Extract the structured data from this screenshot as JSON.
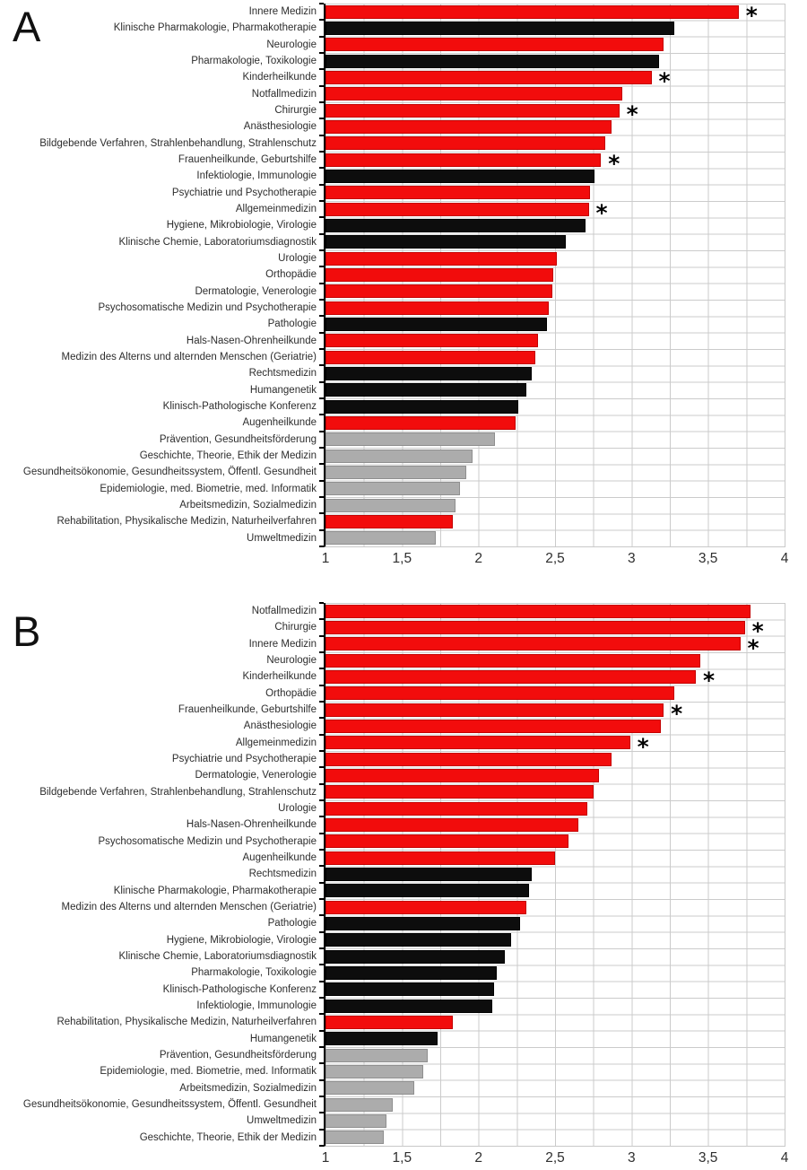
{
  "colors": {
    "red": "#f20c0c",
    "black": "#0d0d0d",
    "gray": "#acacac",
    "grid": "#cbcbcb",
    "axis": "#000000"
  },
  "significance_marker": "*",
  "chart_data": [
    {
      "type": "bar",
      "orientation": "horizontal",
      "panel_label": "A",
      "xlim": [
        1,
        4
      ],
      "grid_step": 0.25,
      "x_ticks": [
        "1",
        "1,5",
        "2",
        "2,5",
        "3",
        "3,5",
        "4"
      ],
      "x_tick_values": [
        1,
        1.5,
        2,
        2.5,
        3,
        3.5,
        4
      ],
      "legend": "none",
      "bars": [
        {
          "label": "Innere Medizin",
          "value": 3.7,
          "color": "red",
          "significant": true
        },
        {
          "label": "Klinische Pharmakologie, Pharmakotherapie",
          "value": 3.28,
          "color": "black",
          "significant": false
        },
        {
          "label": "Neurologie",
          "value": 3.21,
          "color": "red",
          "significant": false
        },
        {
          "label": "Pharmakologie, Toxikologie",
          "value": 3.18,
          "color": "black",
          "significant": false
        },
        {
          "label": "Kinderheilkunde",
          "value": 3.13,
          "color": "red",
          "significant": true
        },
        {
          "label": "Notfallmedizin",
          "value": 2.94,
          "color": "red",
          "significant": false
        },
        {
          "label": "Chirurgie",
          "value": 2.92,
          "color": "red",
          "significant": true
        },
        {
          "label": "Anästhesiologie",
          "value": 2.87,
          "color": "red",
          "significant": false
        },
        {
          "label": "Bildgebende Verfahren, Strahlenbehandlung, Strahlenschutz",
          "value": 2.83,
          "color": "red",
          "significant": false
        },
        {
          "label": "Frauenheilkunde, Geburtshilfe",
          "value": 2.8,
          "color": "red",
          "significant": true
        },
        {
          "label": "Infektiologie, Immunologie",
          "value": 2.76,
          "color": "black",
          "significant": false
        },
        {
          "label": "Psychiatrie und Psychotherapie",
          "value": 2.73,
          "color": "red",
          "significant": false
        },
        {
          "label": "Allgemeinmedizin",
          "value": 2.72,
          "color": "red",
          "significant": true
        },
        {
          "label": "Hygiene, Mikrobiologie, Virologie",
          "value": 2.7,
          "color": "black",
          "significant": false
        },
        {
          "label": "Klinische Chemie, Laboratoriumsdiagnostik",
          "value": 2.57,
          "color": "black",
          "significant": false
        },
        {
          "label": "Urologie",
          "value": 2.51,
          "color": "red",
          "significant": false
        },
        {
          "label": "Orthopädie",
          "value": 2.49,
          "color": "red",
          "significant": false
        },
        {
          "label": "Dermatologie, Venerologie",
          "value": 2.48,
          "color": "red",
          "significant": false
        },
        {
          "label": "Psychosomatische Medizin und Psychotherapie",
          "value": 2.46,
          "color": "red",
          "significant": false
        },
        {
          "label": "Pathologie",
          "value": 2.45,
          "color": "black",
          "significant": false
        },
        {
          "label": "Hals-Nasen-Ohrenheilkunde",
          "value": 2.39,
          "color": "red",
          "significant": false
        },
        {
          "label": "Medizin des Alterns und alternden Menschen (Geriatrie)",
          "value": 2.37,
          "color": "red",
          "significant": false
        },
        {
          "label": "Rechtsmedizin",
          "value": 2.35,
          "color": "black",
          "significant": false
        },
        {
          "label": "Humangenetik",
          "value": 2.31,
          "color": "black",
          "significant": false
        },
        {
          "label": "Klinisch-Pathologische Konferenz",
          "value": 2.26,
          "color": "black",
          "significant": false
        },
        {
          "label": "Augenheilkunde",
          "value": 2.24,
          "color": "red",
          "significant": false
        },
        {
          "label": "Prävention, Gesundheitsförderung",
          "value": 2.11,
          "color": "gray",
          "significant": false
        },
        {
          "label": "Geschichte, Theorie, Ethik der Medizin",
          "value": 1.96,
          "color": "gray",
          "significant": false
        },
        {
          "label": "Gesundheitsökonomie, Gesundheitssystem, Öffentl. Gesundheit",
          "value": 1.92,
          "color": "gray",
          "significant": false
        },
        {
          "label": "Epidemiologie, med. Biometrie, med. Informatik",
          "value": 1.88,
          "color": "gray",
          "significant": false
        },
        {
          "label": "Arbeitsmedizin, Sozialmedizin",
          "value": 1.85,
          "color": "gray",
          "significant": false
        },
        {
          "label": "Rehabilitation, Physikalische Medizin, Naturheilverfahren",
          "value": 1.83,
          "color": "red",
          "significant": false
        },
        {
          "label": "Umweltmedizin",
          "value": 1.72,
          "color": "gray",
          "significant": false
        }
      ]
    },
    {
      "type": "bar",
      "orientation": "horizontal",
      "panel_label": "B",
      "xlim": [
        1,
        4
      ],
      "grid_step": 0.25,
      "x_ticks": [
        "1",
        "1,5",
        "2",
        "2,5",
        "3",
        "3,5",
        "4"
      ],
      "x_tick_values": [
        1,
        1.5,
        2,
        2.5,
        3,
        3.5,
        4
      ],
      "legend": "none",
      "bars": [
        {
          "label": "Notfallmedizin",
          "value": 3.78,
          "color": "red",
          "significant": false
        },
        {
          "label": "Chirurgie",
          "value": 3.74,
          "color": "red",
          "significant": true
        },
        {
          "label": "Innere Medizin",
          "value": 3.71,
          "color": "red",
          "significant": true
        },
        {
          "label": "Neurologie",
          "value": 3.45,
          "color": "red",
          "significant": false
        },
        {
          "label": "Kinderheilkunde",
          "value": 3.42,
          "color": "red",
          "significant": true
        },
        {
          "label": "Orthopädie",
          "value": 3.28,
          "color": "red",
          "significant": false
        },
        {
          "label": "Frauenheilkunde, Geburtshilfe",
          "value": 3.21,
          "color": "red",
          "significant": true
        },
        {
          "label": "Anästhesiologie",
          "value": 3.19,
          "color": "red",
          "significant": false
        },
        {
          "label": "Allgemeinmedizin",
          "value": 2.99,
          "color": "red",
          "significant": true
        },
        {
          "label": "Psychiatrie und Psychotherapie",
          "value": 2.87,
          "color": "red",
          "significant": false
        },
        {
          "label": "Dermatologie, Venerologie",
          "value": 2.79,
          "color": "red",
          "significant": false
        },
        {
          "label": "Bildgebende Verfahren, Strahlenbehandlung, Strahlenschutz",
          "value": 2.75,
          "color": "red",
          "significant": false
        },
        {
          "label": "Urologie",
          "value": 2.71,
          "color": "red",
          "significant": false
        },
        {
          "label": "Hals-Nasen-Ohrenheilkunde",
          "value": 2.65,
          "color": "red",
          "significant": false
        },
        {
          "label": "Psychosomatische Medizin und Psychotherapie",
          "value": 2.59,
          "color": "red",
          "significant": false
        },
        {
          "label": "Augenheilkunde",
          "value": 2.5,
          "color": "red",
          "significant": false
        },
        {
          "label": "Rechtsmedizin",
          "value": 2.35,
          "color": "black",
          "significant": false
        },
        {
          "label": "Klinische Pharmakologie, Pharmakotherapie",
          "value": 2.33,
          "color": "black",
          "significant": false
        },
        {
          "label": "Medizin des Alterns und alternden Menschen (Geriatrie)",
          "value": 2.31,
          "color": "red",
          "significant": false
        },
        {
          "label": "Pathologie",
          "value": 2.27,
          "color": "black",
          "significant": false
        },
        {
          "label": "Hygiene, Mikrobiologie, Virologie",
          "value": 2.21,
          "color": "black",
          "significant": false
        },
        {
          "label": "Klinische Chemie, Laboratoriumsdiagnostik",
          "value": 2.17,
          "color": "black",
          "significant": false
        },
        {
          "label": "Pharmakologie, Toxikologie",
          "value": 2.12,
          "color": "black",
          "significant": false
        },
        {
          "label": "Klinisch-Pathologische Konferenz",
          "value": 2.1,
          "color": "black",
          "significant": false
        },
        {
          "label": "Infektiologie, Immunologie",
          "value": 2.09,
          "color": "black",
          "significant": false
        },
        {
          "label": "Rehabilitation, Physikalische Medizin, Naturheilverfahren",
          "value": 1.83,
          "color": "red",
          "significant": false
        },
        {
          "label": "Humangenetik",
          "value": 1.73,
          "color": "black",
          "significant": false
        },
        {
          "label": "Prävention, Gesundheitsförderung",
          "value": 1.67,
          "color": "gray",
          "significant": false
        },
        {
          "label": "Epidemiologie, med. Biometrie, med. Informatik",
          "value": 1.64,
          "color": "gray",
          "significant": false
        },
        {
          "label": "Arbeitsmedizin, Sozialmedizin",
          "value": 1.58,
          "color": "gray",
          "significant": false
        },
        {
          "label": "Gesundheitsökonomie, Gesundheitssystem, Öffentl. Gesundheit",
          "value": 1.44,
          "color": "gray",
          "significant": false
        },
        {
          "label": "Umweltmedizin",
          "value": 1.4,
          "color": "gray",
          "significant": false
        },
        {
          "label": "Geschichte, Theorie, Ethik der Medizin",
          "value": 1.38,
          "color": "gray",
          "significant": false
        }
      ]
    }
  ]
}
